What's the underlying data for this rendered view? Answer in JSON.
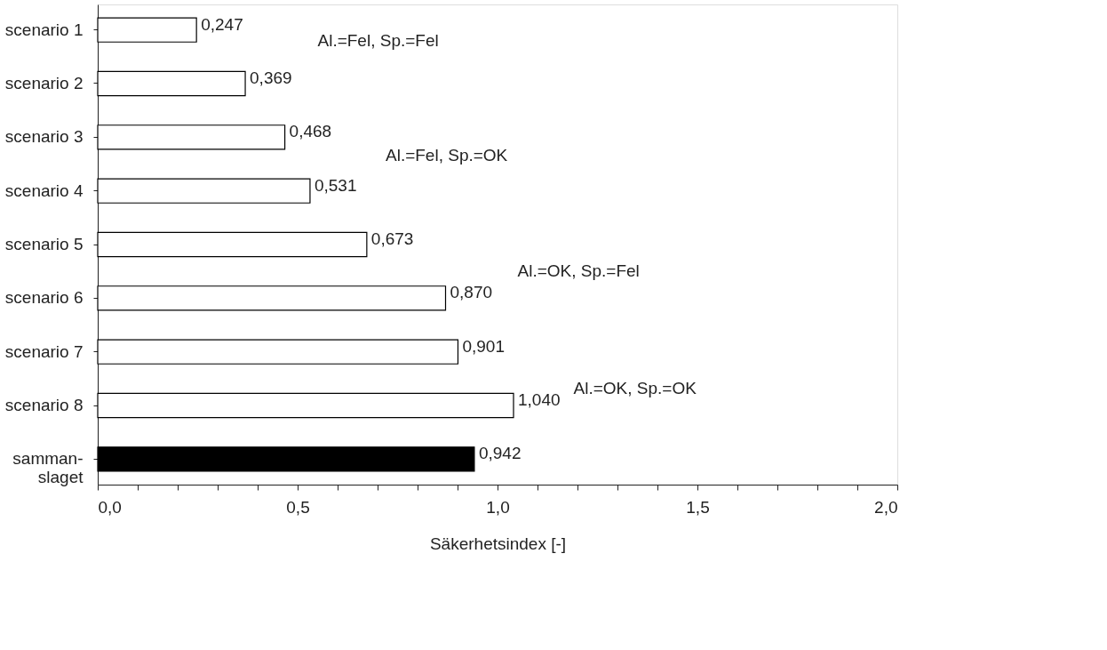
{
  "chart_data": {
    "type": "bar",
    "orientation": "horizontal",
    "xlabel": "Säkerhetsindex [-]",
    "categories": [
      "scenario 1",
      "scenario 2",
      "scenario 3",
      "scenario 4",
      "scenario 5",
      "scenario 6",
      "scenario 7",
      "scenario 8",
      "samman-\nslaget"
    ],
    "values": [
      0.247,
      0.369,
      0.468,
      0.531,
      0.673,
      0.87,
      0.901,
      1.04,
      0.942
    ],
    "colors": [
      "#ffffff",
      "#ffffff",
      "#ffffff",
      "#ffffff",
      "#ffffff",
      "#ffffff",
      "#ffffff",
      "#ffffff",
      "#000000"
    ],
    "value_labels": [
      "0,247",
      "0,369",
      "0,468",
      "0,531",
      "0,673",
      "0,870",
      "0,901",
      "1,040",
      "0,942"
    ],
    "xlim": [
      0,
      2
    ],
    "xticks": [
      {
        "value": 0,
        "label": "0,0"
      },
      {
        "value": 0.1,
        "label": null
      },
      {
        "value": 0.2,
        "label": null
      },
      {
        "value": 0.3,
        "label": null
      },
      {
        "value": 0.4,
        "label": null
      },
      {
        "value": 0.5,
        "label": "0,5"
      },
      {
        "value": 0.6,
        "label": null
      },
      {
        "value": 0.7,
        "label": null
      },
      {
        "value": 0.8,
        "label": null
      },
      {
        "value": 0.9,
        "label": null
      },
      {
        "value": 1,
        "label": "1,0"
      },
      {
        "value": 1.1,
        "label": null
      },
      {
        "value": 1.2,
        "label": null
      },
      {
        "value": 1.3,
        "label": null
      },
      {
        "value": 1.4,
        "label": null
      },
      {
        "value": 1.5,
        "label": "1,5"
      },
      {
        "value": 1.6,
        "label": null
      },
      {
        "value": 1.7,
        "label": null
      },
      {
        "value": 1.8,
        "label": null
      },
      {
        "value": 1.9,
        "label": null
      },
      {
        "value": 2,
        "label": "2,0"
      }
    ],
    "annotations": [
      "Al.=Fel, Sp.=Fel",
      "Al.=Fel, Sp.=OK",
      "Al.=OK, Sp.=Fel",
      "Al.=OK, Sp.=OK"
    ],
    "grid": false
  }
}
